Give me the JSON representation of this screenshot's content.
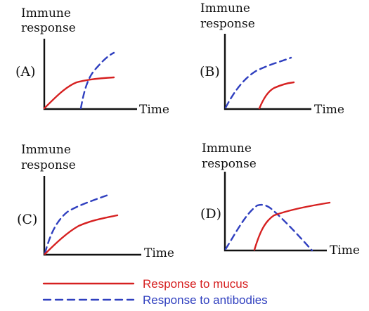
{
  "colors": {
    "mucus": "#d62020",
    "antibodies": "#2f3fbf",
    "axis": "#111111",
    "legend_mucus_text": "#d62020",
    "legend_antibodies_text": "#2f3fbf"
  },
  "panels": [
    {
      "label": "(A)",
      "ylabel_line1": "Immune",
      "ylabel_line2": "response",
      "xlabel": "Time"
    },
    {
      "label": "(B)",
      "ylabel_line1": "Immune",
      "ylabel_line2": "response",
      "xlabel": "Time"
    },
    {
      "label": "(C)",
      "ylabel_line1": "Immune",
      "ylabel_line2": "response",
      "xlabel": "Time"
    },
    {
      "label": "(D)",
      "ylabel_line1": "Immune",
      "ylabel_line2": "response",
      "xlabel": "Time"
    }
  ],
  "legend": {
    "mucus": "Response to mucus",
    "antibodies": "Response to antibodies"
  }
}
